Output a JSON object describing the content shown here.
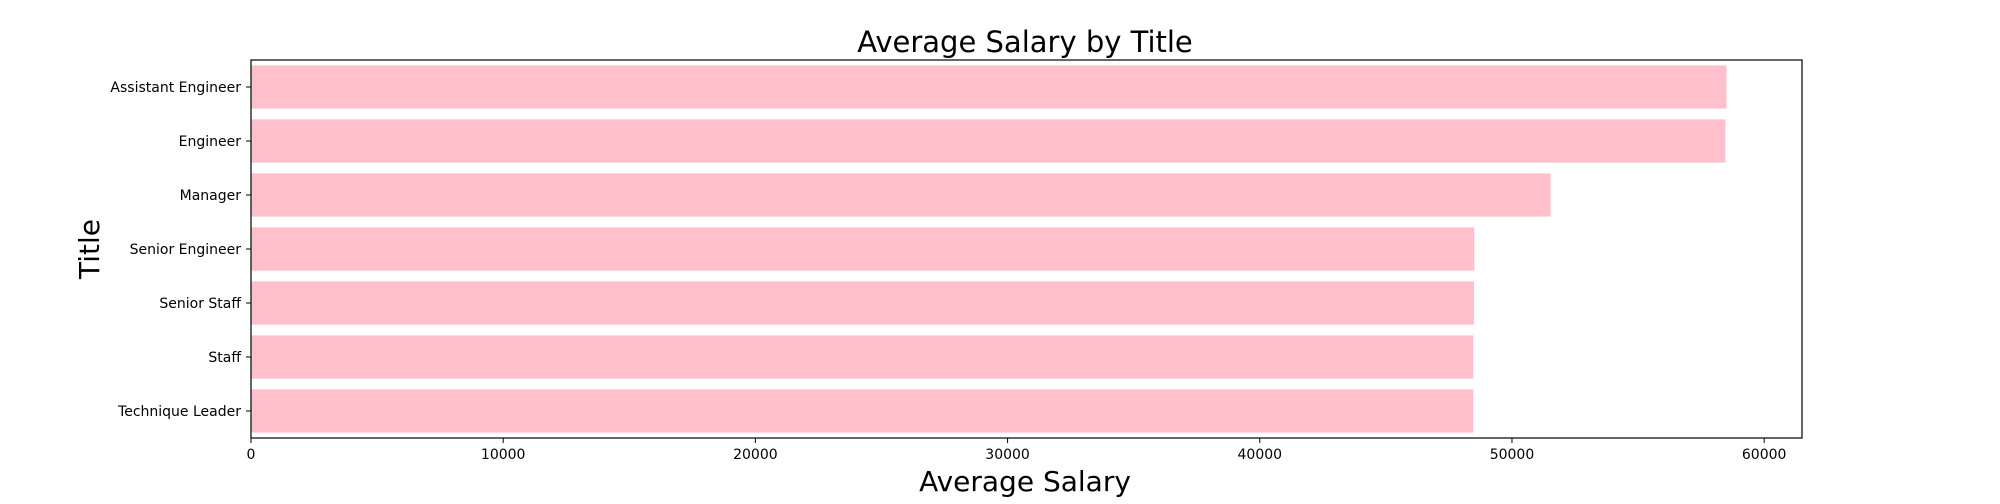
{
  "chart_data": {
    "type": "bar",
    "orientation": "horizontal",
    "title": "Average Salary by Title",
    "xlabel": "Average Salary",
    "ylabel": "Title",
    "categories": [
      "Assistant Engineer",
      "Engineer",
      "Manager",
      "Senior Engineer",
      "Senior Staff",
      "Staff",
      "Technique Leader"
    ],
    "values": [
      58503,
      58460,
      51531,
      48507,
      48497,
      48465,
      48468
    ],
    "xlim": [
      0,
      61500
    ],
    "xticks": [
      0,
      10000,
      20000,
      30000,
      40000,
      50000,
      60000
    ],
    "xtick_labels": [
      "0",
      "10000",
      "20000",
      "30000",
      "40000",
      "50000",
      "60000"
    ],
    "grid": false,
    "legend": "none",
    "bar_color": "#ffc0cb"
  }
}
